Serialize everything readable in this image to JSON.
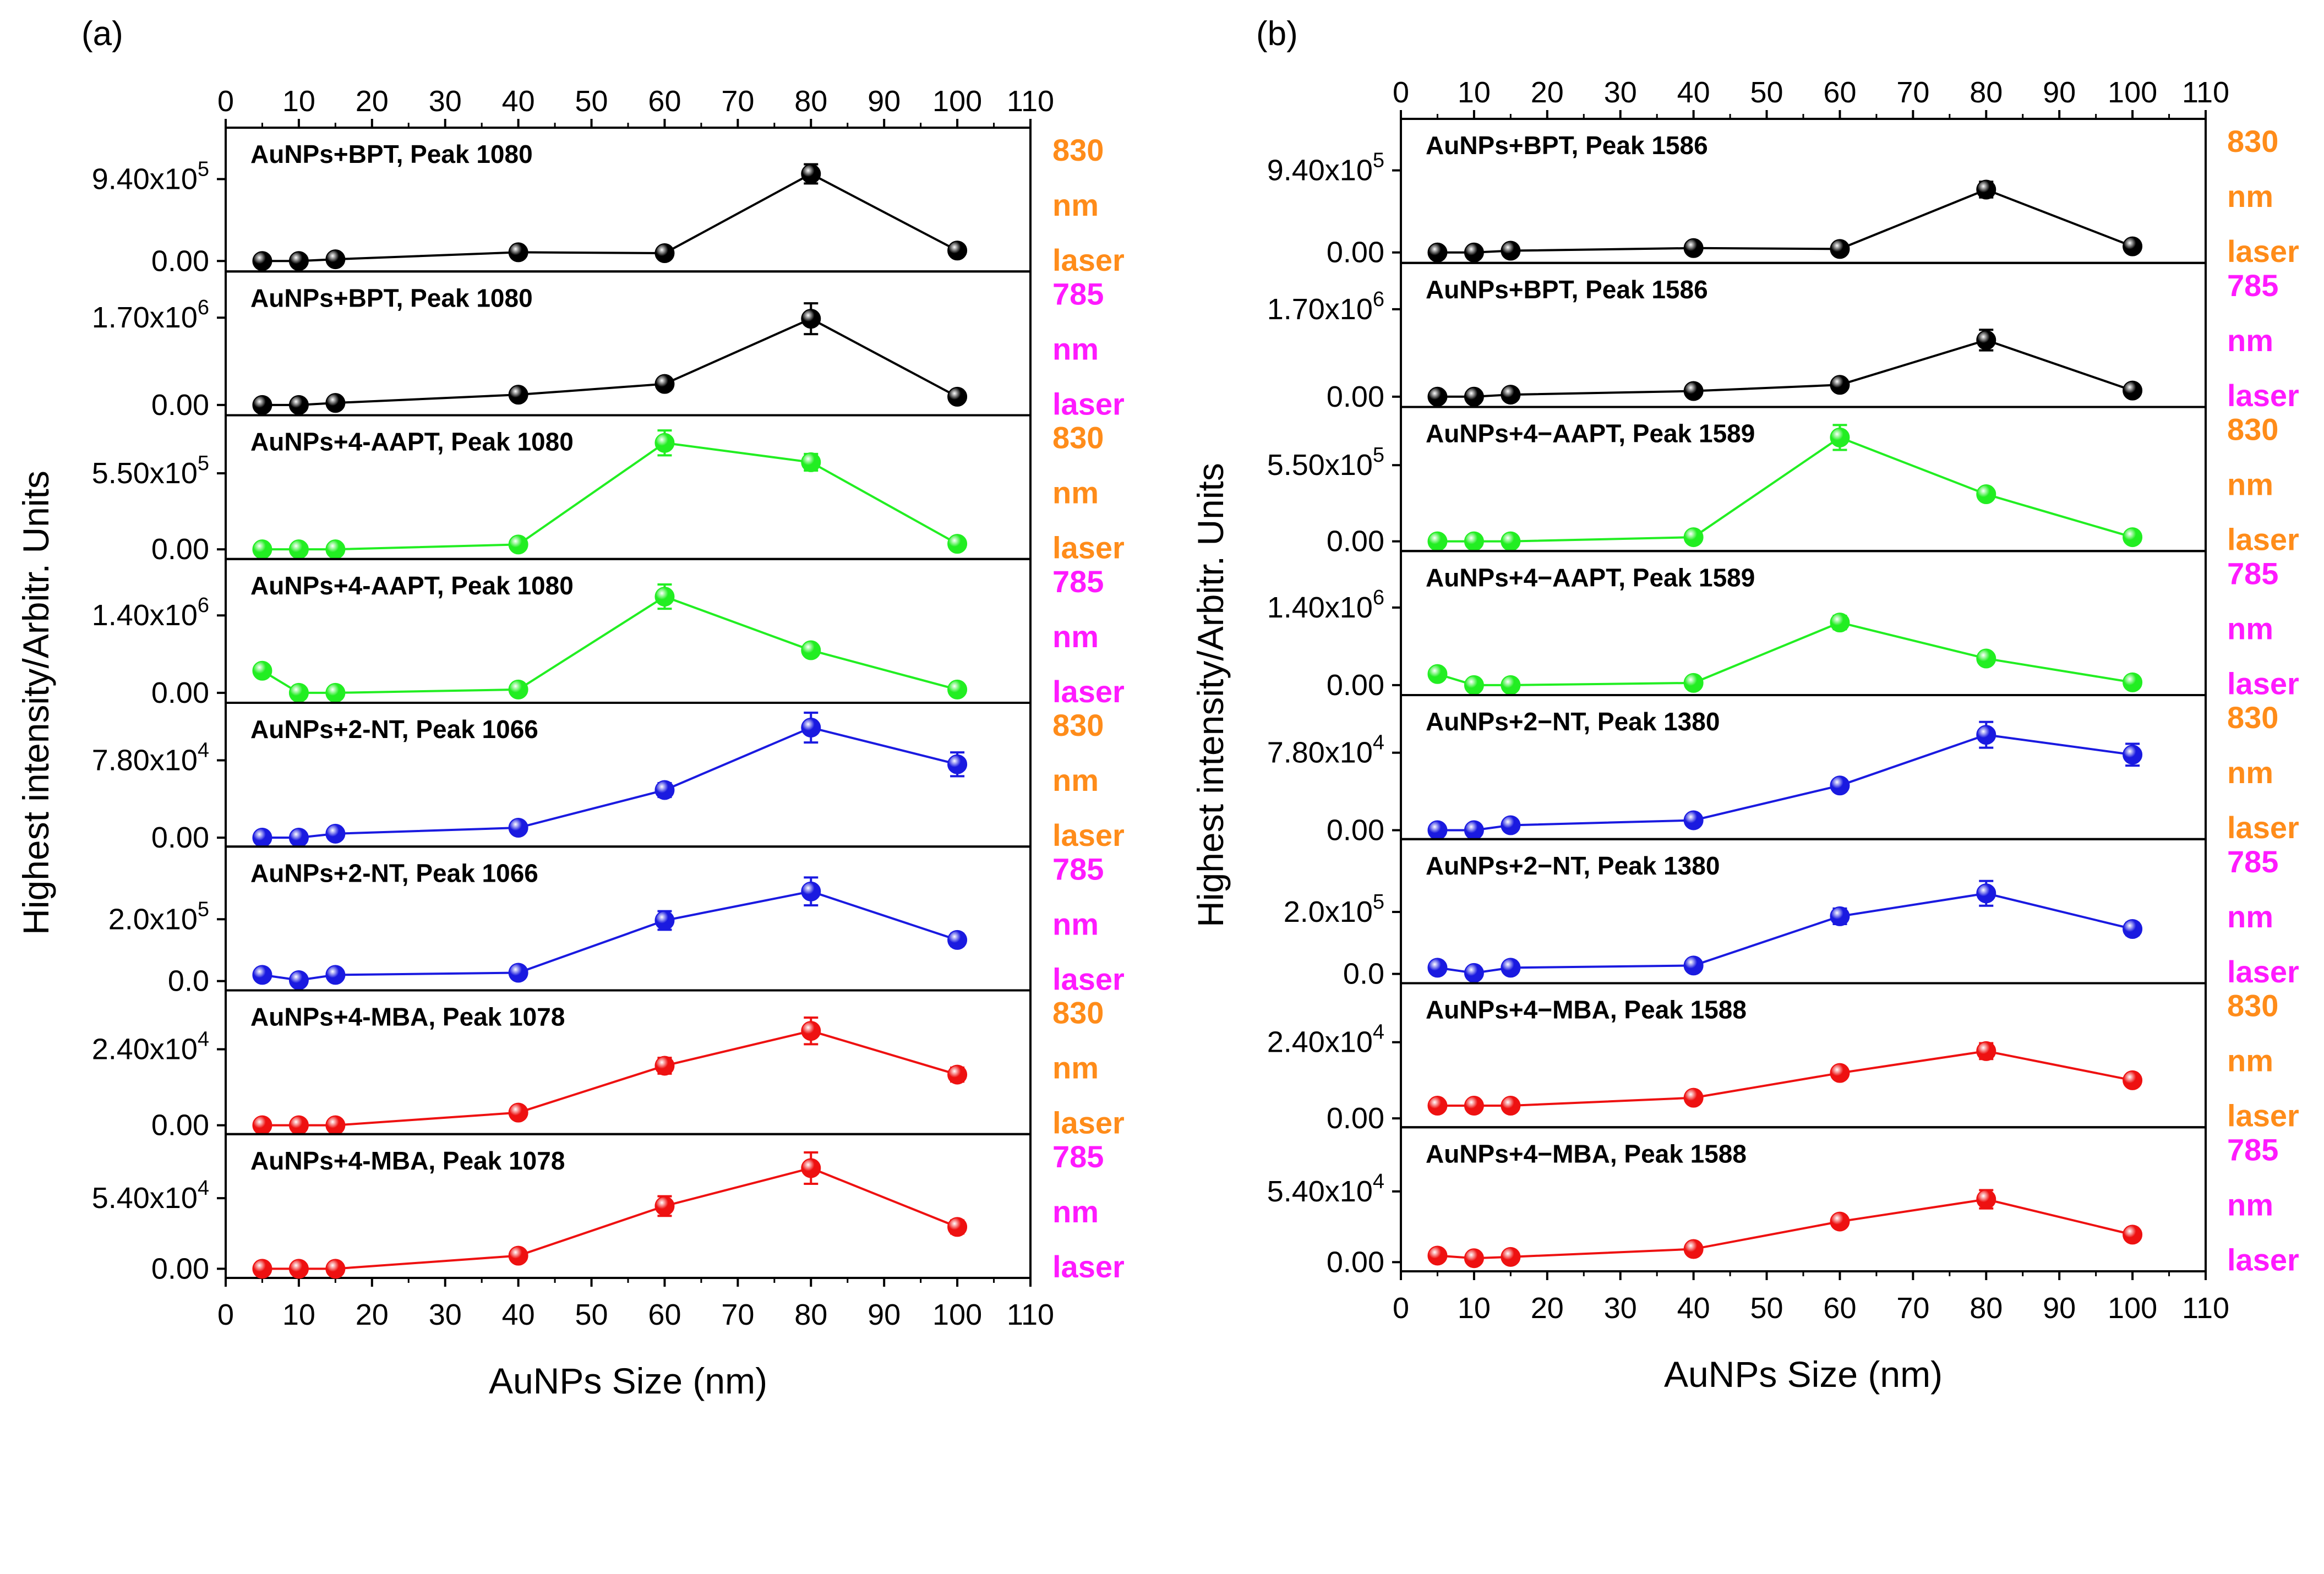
{
  "figure": {
    "labels": [
      "(a)",
      "(b)"
    ],
    "ylabel": "Highest intensity/Arbitr. Units",
    "xlabel": "AuNPs Size (nm)",
    "x_ticks": [
      "0",
      "10",
      "20",
      "30",
      "40",
      "50",
      "60",
      "70",
      "80",
      "90",
      "100",
      "110"
    ]
  },
  "colors": {
    "black": "#000000",
    "green": "#22ee22",
    "blue": "#1a1ae0",
    "red": "#ee1111",
    "orange": "#ff8c1a",
    "magenta": "#ff1aff"
  },
  "chart_data": {
    "type": "line",
    "x": [
      5,
      10,
      15,
      40,
      60,
      80,
      100
    ],
    "xlim": [
      0,
      110
    ],
    "panels": [
      {
        "label": "(a)",
        "subplots": [
          {
            "title": "AuNPs+BPT, Peak  1080",
            "laser": [
              "830",
              "nm",
              "laser"
            ],
            "laser_color": "orange",
            "color": "black",
            "ylim": [
              -0.12,
              1.53
            ],
            "yticks": [
              0.0,
              0.94
            ],
            "ytick_labels": [
              {
                "m": "0.00",
                "e": ""
              },
              {
                "m": "9.40x10",
                "e": "5"
              }
            ],
            "values": [
              0.0,
              0.0,
              0.02,
              0.1,
              0.09,
              1.0,
              0.12
            ],
            "errors": [
              0,
              0,
              0,
              0,
              0,
              0.11,
              0
            ]
          },
          {
            "title": "AuNPs+BPT, Peak  1080",
            "laser": [
              "785",
              "nm",
              "laser"
            ],
            "laser_color": "magenta",
            "color": "black",
            "ylim": [
              -0.2,
              2.6
            ],
            "yticks": [
              0.0,
              1.7
            ],
            "ytick_labels": [
              {
                "m": "0.00",
                "e": ""
              },
              {
                "m": "1.70x10",
                "e": "6"
              }
            ],
            "values": [
              0.0,
              0.0,
              0.04,
              0.2,
              0.41,
              1.68,
              0.16
            ],
            "errors": [
              0,
              0,
              0,
              0,
              0,
              0.3,
              0
            ]
          },
          {
            "title": "AuNPs+4-AAPT, Peak 1080",
            "laser": [
              "830",
              "nm",
              "laser"
            ],
            "laser_color": "orange",
            "color": "green",
            "ylim": [
              -0.07,
              0.97
            ],
            "yticks": [
              0.0,
              0.55
            ],
            "ytick_labels": [
              {
                "m": "0.00",
                "e": ""
              },
              {
                "m": "5.50x10",
                "e": "5"
              }
            ],
            "values": [
              0.0,
              0.0,
              0.0,
              0.035,
              0.77,
              0.63,
              0.04
            ],
            "errors": [
              0,
              0,
              0,
              0,
              0.09,
              0.06,
              0
            ]
          },
          {
            "title": "AuNPs+4-AAPT, Peak 1080",
            "laser": [
              "785",
              "nm",
              "laser"
            ],
            "laser_color": "magenta",
            "color": "green",
            "ylim": [
              -0.18,
              2.42
            ],
            "yticks": [
              0.0,
              1.4
            ],
            "ytick_labels": [
              {
                "m": "0.00",
                "e": ""
              },
              {
                "m": "1.40x10",
                "e": "6"
              }
            ],
            "values": [
              0.4,
              0.0,
              0.0,
              0.06,
              1.74,
              0.77,
              0.06
            ],
            "errors": [
              0,
              0,
              0,
              0,
              0.22,
              0.07,
              0
            ]
          },
          {
            "title": "AuNPs+2-NT, Peak 1066",
            "laser": [
              "830",
              "nm",
              "laser"
            ],
            "laser_color": "orange",
            "color": "blue",
            "ylim": [
              -0.9,
              13.6
            ],
            "yticks": [
              0.0,
              7.8
            ],
            "ytick_labels": [
              {
                "m": "0.00",
                "e": ""
              },
              {
                "m": "7.80x10",
                "e": "4"
              }
            ],
            "values": [
              0.0,
              0.0,
              0.4,
              1.0,
              4.8,
              11.1,
              7.4
            ],
            "errors": [
              0,
              0,
              0,
              0,
              0.7,
              1.5,
              1.2
            ]
          },
          {
            "title": "AuNPs+2-NT, Peak 1066",
            "laser": [
              "785",
              "nm",
              "laser"
            ],
            "laser_color": "magenta",
            "color": "blue",
            "ylim": [
              -0.3,
              4.35
            ],
            "yticks": [
              0.0,
              2.0
            ],
            "ytick_labels": [
              {
                "m": "0.0",
                "e": ""
              },
              {
                "m": "2.0x10",
                "e": "5"
              }
            ],
            "values": [
              0.2,
              0.03,
              0.2,
              0.27,
              1.96,
              2.9,
              1.33
            ],
            "errors": [
              0,
              0,
              0,
              0,
              0.3,
              0.45,
              0.2
            ]
          },
          {
            "title": "AuNPs+4-MBA, Peak  1078",
            "laser": [
              "830",
              "nm",
              "laser"
            ],
            "laser_color": "orange",
            "color": "red",
            "ylim": [
              -0.28,
              4.26
            ],
            "yticks": [
              0.0,
              2.4
            ],
            "ytick_labels": [
              {
                "m": "0.00",
                "e": ""
              },
              {
                "m": "2.40x10",
                "e": "4"
              }
            ],
            "values": [
              0.0,
              0.0,
              0.0,
              0.4,
              1.88,
              2.98,
              1.6
            ],
            "errors": [
              0,
              0,
              0,
              0,
              0.25,
              0.42,
              0.22
            ]
          },
          {
            "title": "AuNPs+4-MBA, Peak  1078",
            "laser": [
              "785",
              "nm",
              "laser"
            ],
            "laser_color": "magenta",
            "color": "red",
            "ylim": [
              -0.7,
              10.3
            ],
            "yticks": [
              0.0,
              5.4
            ],
            "ytick_labels": [
              {
                "m": "0.00",
                "e": ""
              },
              {
                "m": "5.40x10",
                "e": "4"
              }
            ],
            "values": [
              0.0,
              0.0,
              0.0,
              1.0,
              4.8,
              7.7,
              3.2
            ],
            "errors": [
              0,
              0,
              0,
              0,
              0.75,
              1.2,
              0.5
            ]
          }
        ]
      },
      {
        "label": "(b)",
        "subplots": [
          {
            "title": "AuNPs+BPT, Peak 1586",
            "laser": [
              "830",
              "nm",
              "laser"
            ],
            "laser_color": "orange",
            "color": "black",
            "ylim": [
              -0.12,
              1.53
            ],
            "yticks": [
              0.0,
              0.94
            ],
            "ytick_labels": [
              {
                "m": "0.00",
                "e": ""
              },
              {
                "m": "9.40x10",
                "e": "5"
              }
            ],
            "values": [
              0.0,
              0.0,
              0.02,
              0.05,
              0.04,
              0.72,
              0.07
            ],
            "errors": [
              0,
              0,
              0,
              0,
              0,
              0.09,
              0
            ]
          },
          {
            "title": "AuNPs+BPT, Peak 1586",
            "laser": [
              "785",
              "nm",
              "laser"
            ],
            "laser_color": "magenta",
            "color": "black",
            "ylim": [
              -0.2,
              2.6
            ],
            "yticks": [
              0.0,
              1.7
            ],
            "ytick_labels": [
              {
                "m": "0.00",
                "e": ""
              },
              {
                "m": "1.70x10",
                "e": "6"
              }
            ],
            "values": [
              0.0,
              0.0,
              0.04,
              0.11,
              0.23,
              1.1,
              0.12
            ],
            "errors": [
              0,
              0,
              0,
              0,
              0,
              0.2,
              0
            ]
          },
          {
            "title": "AuNPs+4−AAPT, Peak 1589",
            "laser": [
              "830",
              "nm",
              "laser"
            ],
            "laser_color": "orange",
            "color": "green",
            "ylim": [
              -0.07,
              0.97
            ],
            "yticks": [
              0.0,
              0.55
            ],
            "ytick_labels": [
              {
                "m": "0.00",
                "e": ""
              },
              {
                "m": "5.50x10",
                "e": "5"
              }
            ],
            "values": [
              0.0,
              0.0,
              0.0,
              0.03,
              0.75,
              0.34,
              0.03
            ],
            "errors": [
              0,
              0,
              0,
              0,
              0.09,
              0.03,
              0
            ]
          },
          {
            "title": "AuNPs+4−AAPT, Peak 1589",
            "laser": [
              "785",
              "nm",
              "laser"
            ],
            "laser_color": "magenta",
            "color": "green",
            "ylim": [
              -0.18,
              2.42
            ],
            "yticks": [
              0.0,
              1.4
            ],
            "ytick_labels": [
              {
                "m": "0.00",
                "e": ""
              },
              {
                "m": "1.40x10",
                "e": "6"
              }
            ],
            "values": [
              0.2,
              0.0,
              0.0,
              0.04,
              1.13,
              0.48,
              0.05
            ],
            "errors": [
              0,
              0,
              0,
              0,
              0.12,
              0.05,
              0
            ]
          },
          {
            "title": "AuNPs+2−NT, Peak 1380",
            "laser": [
              "830",
              "nm",
              "laser"
            ],
            "laser_color": "orange",
            "color": "blue",
            "ylim": [
              -0.9,
              13.6
            ],
            "yticks": [
              0.0,
              7.8
            ],
            "ytick_labels": [
              {
                "m": "0.00",
                "e": ""
              },
              {
                "m": "7.80x10",
                "e": "4"
              }
            ],
            "values": [
              0.0,
              0.0,
              0.5,
              1.0,
              4.5,
              9.6,
              7.6
            ],
            "errors": [
              0,
              0,
              0,
              0,
              0.6,
              1.3,
              1.1
            ]
          },
          {
            "title": "AuNPs+2−NT, Peak 1380",
            "laser": [
              "785",
              "nm",
              "laser"
            ],
            "laser_color": "magenta",
            "color": "blue",
            "ylim": [
              -0.3,
              4.35
            ],
            "yticks": [
              0.0,
              2.0
            ],
            "ytick_labels": [
              {
                "m": "0.0",
                "e": ""
              },
              {
                "m": "2.0x10",
                "e": "5"
              }
            ],
            "values": [
              0.2,
              0.03,
              0.2,
              0.27,
              1.86,
              2.6,
              1.45
            ],
            "errors": [
              0,
              0,
              0,
              0,
              0.25,
              0.4,
              0.2
            ]
          },
          {
            "title": "AuNPs+4−MBA, Peak 1588",
            "laser": [
              "830",
              "nm",
              "laser"
            ],
            "laser_color": "orange",
            "color": "red",
            "ylim": [
              -0.28,
              4.26
            ],
            "yticks": [
              0.0,
              2.4
            ],
            "ytick_labels": [
              {
                "m": "0.00",
                "e": ""
              },
              {
                "m": "2.40x10",
                "e": "4"
              }
            ],
            "values": [
              0.4,
              0.4,
              0.4,
              0.65,
              1.43,
              2.12,
              1.2
            ],
            "errors": [
              0,
              0,
              0,
              0,
              0.17,
              0.25,
              0.14
            ]
          },
          {
            "title": "AuNPs+4−MBA, Peak 1588",
            "laser": [
              "785",
              "nm",
              "laser"
            ],
            "laser_color": "magenta",
            "color": "red",
            "ylim": [
              -0.7,
              10.3
            ],
            "yticks": [
              0.0,
              5.4
            ],
            "ytick_labels": [
              {
                "m": "0.00",
                "e": ""
              },
              {
                "m": "5.40x10",
                "e": "4"
              }
            ],
            "values": [
              0.5,
              0.3,
              0.4,
              1.0,
              3.1,
              4.8,
              2.1
            ],
            "errors": [
              0,
              0,
              0,
              0,
              0.45,
              0.7,
              0.3
            ]
          }
        ]
      }
    ]
  }
}
